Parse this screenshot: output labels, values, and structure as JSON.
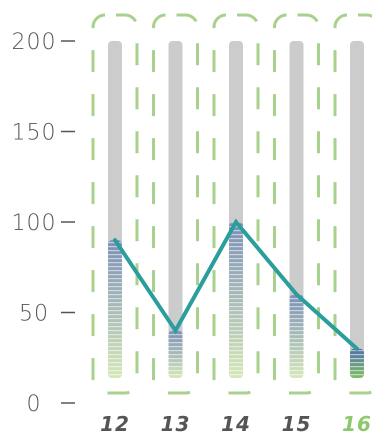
{
  "chart_data": {
    "type": "bar",
    "categories": [
      "12",
      "13",
      "14",
      "15",
      "16"
    ],
    "values": [
      90,
      40,
      100,
      60,
      30
    ],
    "ylim": [
      0,
      200
    ],
    "y_ticks": [
      "0",
      "50",
      "100",
      "150",
      "200"
    ],
    "grid": false,
    "legend": "none",
    "selected_category": "16",
    "title": "",
    "xlabel": "",
    "ylabel": ""
  },
  "colors": {
    "bracket": "#a9d18e",
    "track": "#cccccc",
    "bar_top": "#7b8fb8",
    "bar_bottom": "#d6e8b8",
    "selected_bar_top": "#4f6faa",
    "selected_bar_bottom": "#7fbf65",
    "line": "#2a9d9d",
    "x_label": "#555555",
    "x_label_selected": "#8cc86e",
    "axis_text": "#555555"
  }
}
